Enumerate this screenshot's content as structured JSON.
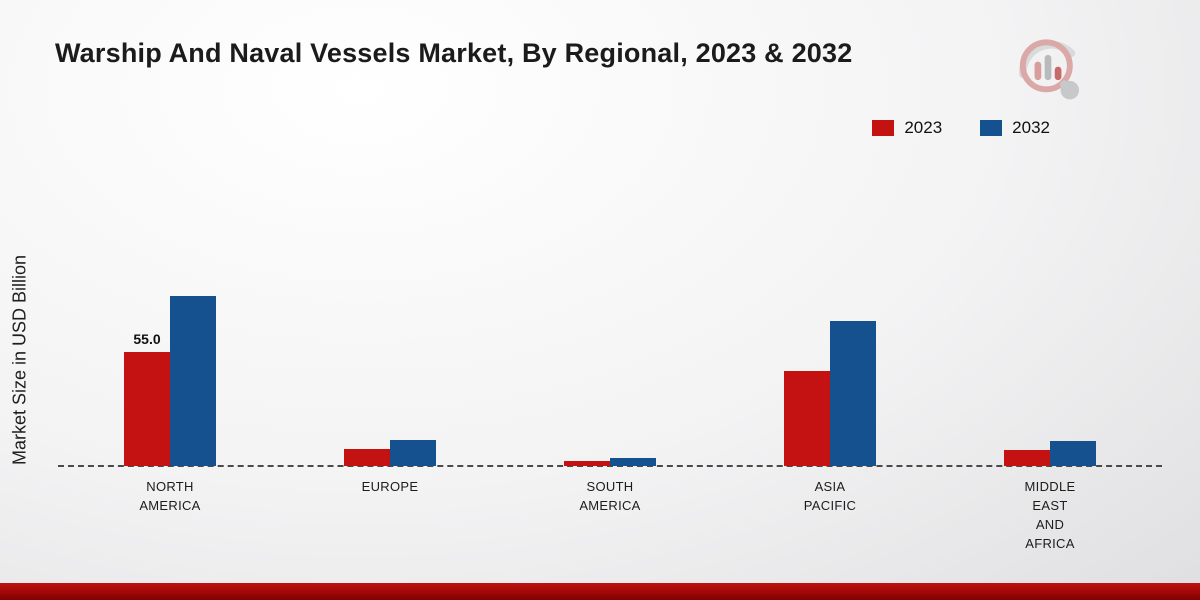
{
  "title": "Warship And Naval Vessels Market, By Regional, 2023 & 2032",
  "y_axis_label": "Market Size in USD Billion",
  "colors": {
    "series_2023": "#c41111",
    "series_2032": "#15508f",
    "footer_band": "#9d0606"
  },
  "legend": {
    "position": "top-right",
    "items": [
      {
        "label": "2023",
        "color": "#c41111"
      },
      {
        "label": "2032",
        "color": "#15508f"
      }
    ]
  },
  "chart_data": {
    "type": "bar",
    "title": "Warship And Naval Vessels Market, By Regional, 2023 & 2032",
    "xlabel": "",
    "ylabel": "Market Size in USD Billion",
    "grid": false,
    "legend_position": "top-right",
    "ylim": [
      0,
      90
    ],
    "categories": [
      "NORTH AMERICA",
      "EUROPE",
      "SOUTH AMERICA",
      "ASIA PACIFIC",
      "MIDDLE EAST AND AFRICA"
    ],
    "category_lines": [
      [
        "NORTH",
        "AMERICA"
      ],
      [
        "EUROPE"
      ],
      [
        "SOUTH",
        "AMERICA"
      ],
      [
        "ASIA",
        "PACIFIC"
      ],
      [
        "MIDDLE",
        "EAST",
        "AND",
        "AFRICA"
      ]
    ],
    "series": [
      {
        "name": "2023",
        "color": "#c41111",
        "values": [
          55.0,
          8.0,
          2.5,
          46.0,
          7.5
        ],
        "labels": [
          "55.0",
          "",
          "",
          "",
          ""
        ]
      },
      {
        "name": "2032",
        "color": "#15508f",
        "values": [
          82.0,
          12.5,
          4.0,
          70.0,
          12.0
        ],
        "labels": [
          "",
          "",
          "",
          "",
          ""
        ]
      }
    ]
  }
}
